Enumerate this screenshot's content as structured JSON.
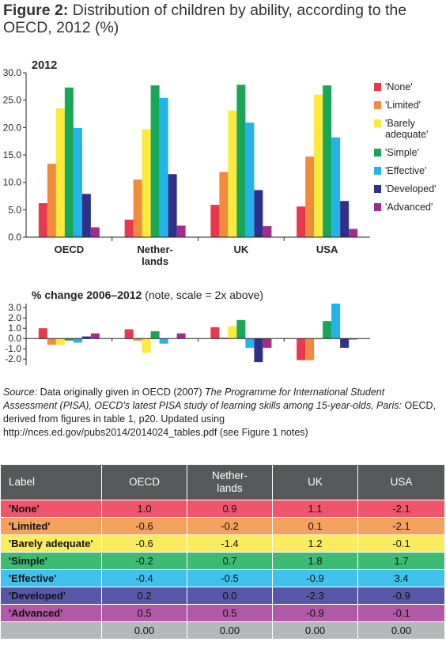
{
  "figure": {
    "label": "Figure 2:",
    "title": "Distribution of children by ability, according to the OECD, 2012 (%)"
  },
  "chart_data": [
    {
      "type": "bar",
      "title": "2012",
      "categories": [
        "OECD",
        "Nether-lands",
        "UK",
        "USA"
      ],
      "category_lines": [
        [
          "OECD"
        ],
        [
          "Nether-",
          "lands"
        ],
        [
          "UK"
        ],
        [
          "USA"
        ]
      ],
      "ylim": [
        0,
        30
      ],
      "yticks": [
        "0.0",
        "5.0",
        "10.0",
        "15.0",
        "20.0",
        "25.0",
        "30.0"
      ],
      "tick_values": [
        0,
        5,
        10,
        15,
        20,
        25,
        30
      ],
      "grid": false,
      "legend_position": "right",
      "series": [
        {
          "name": "'None'",
          "legend_lines": [
            "'None'"
          ],
          "color": "#e8384f",
          "values": [
            6.2,
            3.2,
            5.9,
            5.6
          ]
        },
        {
          "name": "'Limited'",
          "legend_lines": [
            "'Limited'"
          ],
          "color": "#f28a3c",
          "values": [
            13.4,
            10.5,
            11.9,
            14.7
          ]
        },
        {
          "name": "'Barely adequate'",
          "legend_lines": [
            "'Barely",
            "adequate'"
          ],
          "color": "#fbe93b",
          "values": [
            23.5,
            19.7,
            23.1,
            26.0
          ]
        },
        {
          "name": "'Simple'",
          "legend_lines": [
            "'Simple'"
          ],
          "color": "#18a659",
          "values": [
            27.3,
            27.7,
            27.8,
            27.7
          ]
        },
        {
          "name": "'Effective'",
          "legend_lines": [
            "'Effective'"
          ],
          "color": "#22b3e8",
          "values": [
            19.9,
            25.4,
            20.9,
            18.2
          ]
        },
        {
          "name": "'Developed'",
          "legend_lines": [
            "'Developed'"
          ],
          "color": "#2f2f8c",
          "values": [
            7.9,
            11.5,
            8.6,
            6.6
          ]
        },
        {
          "name": "'Advanced'",
          "legend_lines": [
            "'Advanced'"
          ],
          "color": "#a32b8f",
          "values": [
            1.8,
            2.1,
            2.0,
            1.5
          ]
        }
      ]
    },
    {
      "type": "bar",
      "title_bold": "% change 2006–2012",
      "title_note": "(note, scale = 2x above)",
      "categories": [
        "OECD",
        "Nether-lands",
        "UK",
        "USA"
      ],
      "ylim": [
        -2.6,
        3.4
      ],
      "yticks": [
        "3.0",
        "2.0",
        "1.0",
        "0.0",
        "-1.0",
        "-2.0"
      ],
      "tick_values": [
        3,
        2,
        1,
        0,
        -1,
        -2
      ],
      "grid": false,
      "series": [
        {
          "name": "'None'",
          "color": "#e8384f",
          "values": [
            1.0,
            0.9,
            1.1,
            -2.1
          ]
        },
        {
          "name": "'Limited'",
          "color": "#f28a3c",
          "values": [
            -0.6,
            -0.2,
            0.1,
            -2.1
          ]
        },
        {
          "name": "'Barely adequate'",
          "color": "#fbe93b",
          "values": [
            -0.6,
            -1.4,
            1.2,
            -0.1
          ]
        },
        {
          "name": "'Simple'",
          "color": "#18a659",
          "values": [
            -0.2,
            0.7,
            1.8,
            1.7
          ]
        },
        {
          "name": "'Effective'",
          "color": "#22b3e8",
          "values": [
            -0.4,
            -0.5,
            -0.9,
            3.4
          ]
        },
        {
          "name": "'Developed'",
          "color": "#2f2f8c",
          "values": [
            0.2,
            0.0,
            -2.3,
            -0.9
          ]
        },
        {
          "name": "'Advanced'",
          "color": "#a32b8f",
          "values": [
            0.5,
            0.5,
            -0.9,
            -0.1
          ]
        }
      ]
    },
    {
      "type": "table",
      "columns": [
        "Label",
        "OECD",
        "Nether-lands",
        "UK",
        "USA"
      ],
      "header_lines": [
        [
          "Label"
        ],
        [
          "OECD"
        ],
        [
          "Nether-",
          "lands"
        ],
        [
          "UK"
        ],
        [
          "USA"
        ]
      ],
      "rows": [
        {
          "label": "'None'",
          "color": "#f0566a",
          "values": [
            "1.0",
            "0.9",
            "1.1",
            "-2.1"
          ]
        },
        {
          "label": "'Limited'",
          "color": "#f4a05e",
          "values": [
            "-0.6",
            "-0.2",
            "0.1",
            "-2.1"
          ]
        },
        {
          "label": "'Barely adequate'",
          "color": "#fbeb5f",
          "values": [
            "-0.6",
            "-1.4",
            "1.2",
            "-0.1"
          ]
        },
        {
          "label": "'Simple'",
          "color": "#3dba74",
          "values": [
            "-0.2",
            "0.7",
            "1.8",
            "1.7"
          ]
        },
        {
          "label": "'Effective'",
          "color": "#41c1ee",
          "values": [
            "-0.4",
            "-0.5",
            "-0.9",
            "3.4"
          ]
        },
        {
          "label": "'Developed'",
          "color": "#5856a6",
          "values": [
            "0.2",
            "0.0",
            "-2.3",
            "-0.9"
          ]
        },
        {
          "label": "'Advanced'",
          "color": "#b158a6",
          "values": [
            "0.5",
            "0.5",
            "-0.9",
            "-0.1"
          ]
        },
        {
          "label": "",
          "color": "#b5b7b9",
          "values": [
            "0.00",
            "0.00",
            "0.00",
            "0.00"
          ]
        }
      ]
    }
  ],
  "source": {
    "label": "Source:",
    "text1": " Data originally given in OECD (2007) ",
    "book": "The Programme for International Student Assessment (PISA), OECD's latest PISA study of learning skills among 15-year-olds, Paris:",
    "text2": " OECD, derived from figures in table 1, p20. Updated using http://nces.ed.gov/pubs2014/2014024_tables.pdf (see Figure 1 notes)"
  }
}
